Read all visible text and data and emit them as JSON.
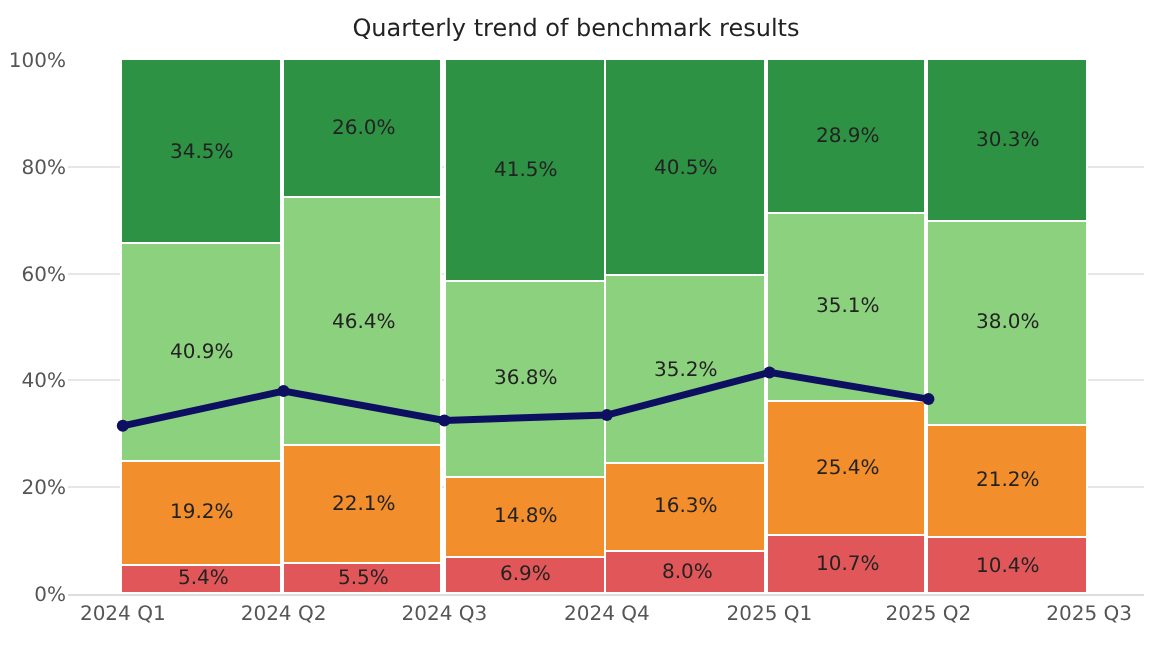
{
  "chart_data": {
    "type": "bar",
    "title": "Quarterly trend of benchmark results",
    "stacked": true,
    "x": [
      "2024-01",
      "2024-04",
      "2024-07",
      "2024-10",
      "2025-01",
      "2025-04"
    ],
    "xlim": [
      "2023-12",
      "2025-08"
    ],
    "xticks": [
      {
        "value": "2024-01",
        "label": "2024 Q1"
      },
      {
        "value": "2024-04",
        "label": "2024 Q2"
      },
      {
        "value": "2024-07",
        "label": "2024 Q3"
      },
      {
        "value": "2024-10",
        "label": "2024 Q4"
      },
      {
        "value": "2025-01",
        "label": "2025 Q1"
      },
      {
        "value": "2025-04",
        "label": "2025 Q2"
      },
      {
        "value": "2025-07",
        "label": "2025 Q3"
      }
    ],
    "ylim": [
      0,
      100
    ],
    "yticks": [
      {
        "value": 0,
        "label": "0%"
      },
      {
        "value": 20,
        "label": "20%"
      },
      {
        "value": 40,
        "label": "40%"
      },
      {
        "value": 60,
        "label": "60%"
      },
      {
        "value": 80,
        "label": "80%"
      },
      {
        "value": 100,
        "label": "100%"
      }
    ],
    "grid": "y",
    "series": [
      {
        "x": [
          "2024-02-15",
          "2024-05-16",
          "2024-08-16",
          "2024-11-15",
          "2025-02-14",
          "2025-05-16"
        ],
        "color": "#e15759",
        "values": [
          5.4,
          5.5,
          6.9,
          8.0,
          10.7,
          10.4
        ],
        "value_labels": [
          "5.4%",
          "5.5%",
          "6.9%",
          "8.0%",
          "10.7%",
          "10.4%"
        ]
      },
      {
        "x": [
          "2024-02-15",
          "2024-05-16",
          "2024-08-16",
          "2024-11-15",
          "2025-02-14",
          "2025-05-16"
        ],
        "color": "#f28e2b",
        "values": [
          19.2,
          22.1,
          14.8,
          16.3,
          25.4,
          21.2
        ],
        "value_labels": [
          "19.2%",
          "22.1%",
          "14.8%",
          "16.3%",
          "25.4%",
          "21.2%"
        ]
      },
      {
        "x": [
          "2024-02-15",
          "2024-05-16",
          "2024-08-16",
          "2024-11-15",
          "2025-02-14",
          "2025-05-16"
        ],
        "color": "#8cd17d",
        "values": [
          40.9,
          46.4,
          36.8,
          35.2,
          35.1,
          38.0
        ],
        "value_labels": [
          "40.9%",
          "46.4%",
          "36.8%",
          "35.2%",
          "35.1%",
          "38.0%"
        ]
      },
      {
        "x": [
          "2024-02-15",
          "2024-05-16",
          "2024-08-16",
          "2024-11-15",
          "2025-02-14",
          "2025-05-16"
        ],
        "color": "#2e9245",
        "values": [
          34.5,
          26.0,
          41.5,
          40.5,
          28.9,
          30.3
        ],
        "value_labels": [
          "34.5%",
          "26.0%",
          "41.5%",
          "40.5%",
          "28.9%",
          "30.3%"
        ]
      },
      {
        "type": "line",
        "color": "#0d1060",
        "values": [
          31.5,
          38,
          32.5,
          33.5,
          41.5,
          36.5
        ],
        "marker": "circle",
        "line_style": "solid"
      }
    ]
  }
}
